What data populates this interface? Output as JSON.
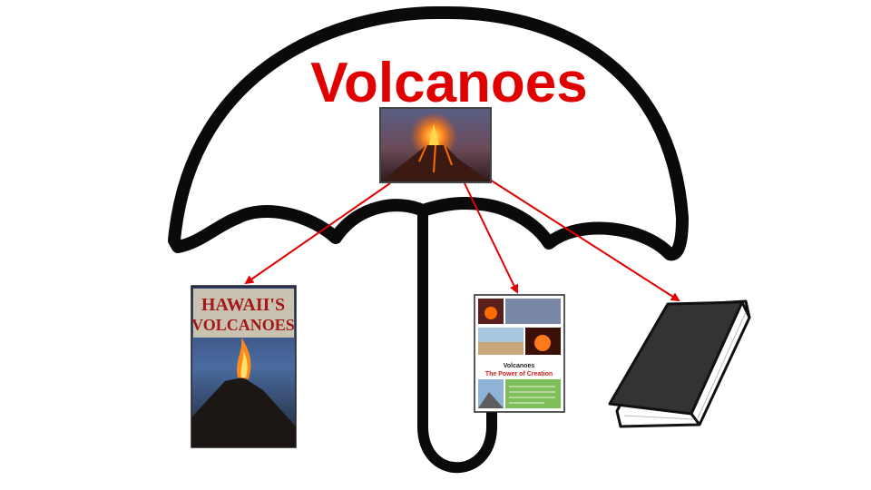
{
  "title": {
    "text": "Volcanoes",
    "color": "#e00000"
  },
  "colors": {
    "arrow": "#e00000",
    "umbrella": "#0a0a0a",
    "book": "#333333"
  },
  "center_image": {
    "icon": "erupting-volcano-photo"
  },
  "resources": [
    {
      "icon": "book-cover-hawaiis-volcanoes",
      "cover_lines": [
        "HAWAII'S",
        "VOLCANOES"
      ]
    },
    {
      "icon": "booklet-volcanoes-power-of-creation",
      "cover_lines": [
        "Volcanoes",
        "The Power of Creation"
      ]
    },
    {
      "icon": "closed-book-icon"
    }
  ]
}
